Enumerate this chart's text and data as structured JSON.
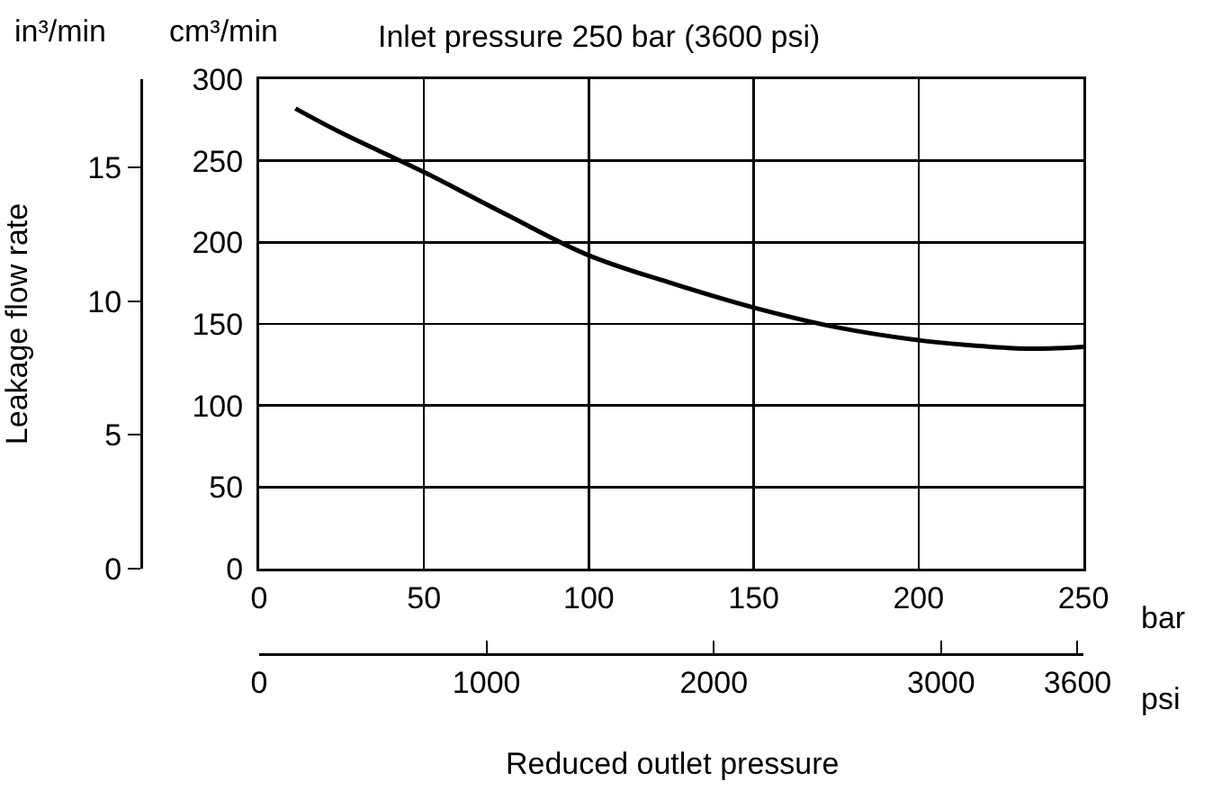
{
  "chart_data": {
    "type": "line",
    "title": "Inlet pressure 250 bar (3600 psi)",
    "xlabel": "Reduced outlet pressure",
    "y2label": "Leakage flow rate",
    "annotations": [
      "in³/min",
      "cm³/min",
      "bar",
      "psi"
    ],
    "series": [
      {
        "color": "#000000",
        "x": [
          11,
          25,
          50,
          75,
          100,
          125,
          150,
          175,
          200,
          215,
          230,
          240,
          250
        ],
        "values": [
          282,
          267,
          243,
          217,
          192,
          175,
          160,
          148,
          140,
          137,
          135,
          135,
          136
        ]
      }
    ],
    "xlim": [
      0,
      250
    ],
    "xticks": [
      0,
      50,
      100,
      150,
      200,
      250
    ],
    "ylim": [
      0,
      300
    ],
    "yticks": [
      0,
      50,
      100,
      150,
      200,
      250,
      300
    ],
    "y2lim": [
      0,
      18.3
    ],
    "y2ticks": [
      0,
      5,
      10,
      15
    ],
    "x2lim": [
      0,
      3626
    ],
    "x2ticks": [
      0,
      1000,
      2000,
      3000,
      3600
    ],
    "grid": true,
    "line_style": "solid",
    "marker": "none"
  }
}
